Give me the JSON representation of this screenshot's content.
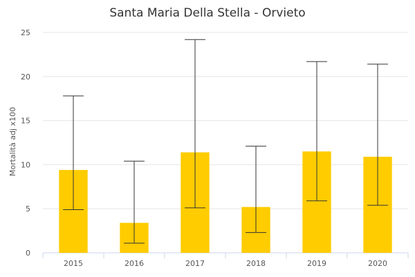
{
  "chart_data": {
    "type": "bar",
    "title": "Santa Maria Della Stella - Orvieto",
    "xlabel": "",
    "ylabel": "Mortalità adj x100",
    "categories": [
      "2015",
      "2016",
      "2017",
      "2018",
      "2019",
      "2020"
    ],
    "values": [
      9.4,
      3.4,
      11.4,
      5.2,
      11.5,
      10.9
    ],
    "error_low": [
      4.9,
      1.1,
      5.1,
      2.3,
      5.9,
      5.4
    ],
    "error_high": [
      17.8,
      10.4,
      24.2,
      12.1,
      21.7,
      21.4
    ],
    "ylim": [
      0,
      25
    ],
    "yticks": [
      "0",
      "5",
      "10",
      "15",
      "20",
      "25"
    ],
    "grid": true,
    "colors": {
      "bar": "#FFCC00",
      "error": "#333333",
      "grid": "#e6e6e6"
    }
  }
}
